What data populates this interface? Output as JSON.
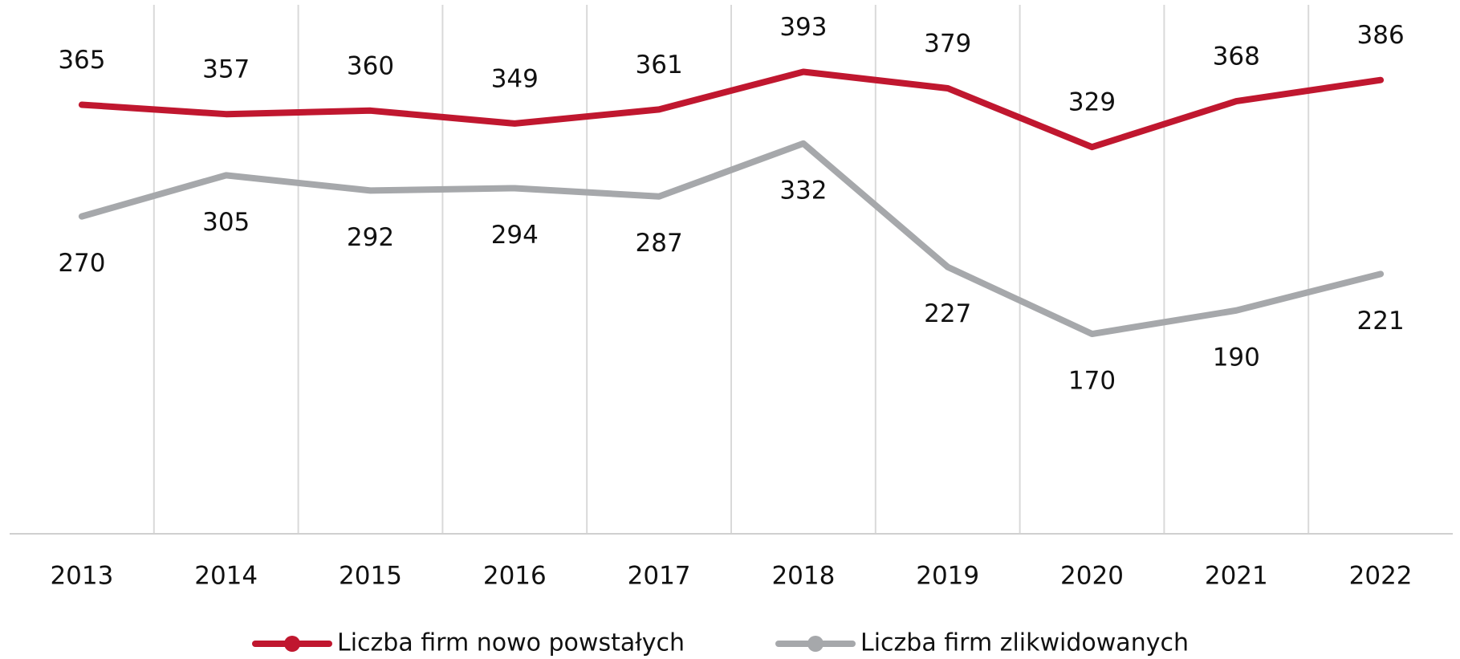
{
  "chart_data": {
    "type": "line",
    "categories": [
      "2013",
      "2014",
      "2015",
      "2016",
      "2017",
      "2018",
      "2019",
      "2020",
      "2021",
      "2022"
    ],
    "series": [
      {
        "name": "Liczba firm nowo powstałych",
        "color": "#c0172f",
        "values": [
          365,
          357,
          360,
          349,
          361,
          393,
          379,
          329,
          368,
          386
        ]
      },
      {
        "name": "Liczba firm zlikwidowanych",
        "color": "#a6a8ab",
        "values": [
          270,
          305,
          292,
          294,
          287,
          332,
          227,
          170,
          190,
          221
        ]
      }
    ],
    "ylim": [
      0,
      450
    ]
  }
}
